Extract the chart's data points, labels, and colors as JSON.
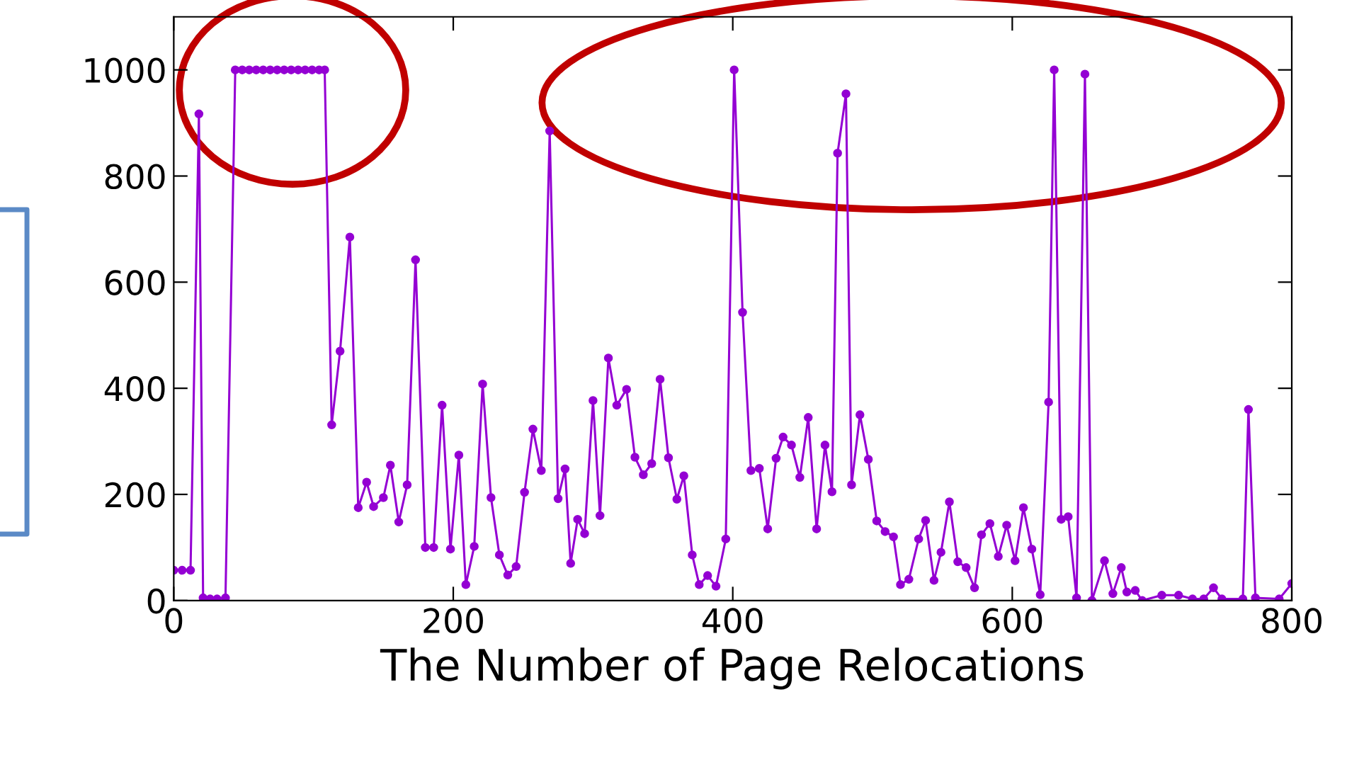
{
  "chart_data": {
    "type": "line",
    "xlabel": "The Number of Page Relocations",
    "series": [
      {
        "color": "#9400d3",
        "x": [
          0,
          6,
          12,
          18,
          21,
          26,
          31,
          37,
          44,
          49,
          54,
          59,
          64,
          69,
          74,
          79,
          84,
          89,
          94,
          99,
          104,
          108,
          113,
          119,
          126,
          132,
          138,
          143,
          150,
          155,
          161,
          167,
          173,
          180,
          186,
          192,
          198,
          204,
          209,
          215,
          221,
          227,
          233,
          239,
          245,
          251,
          257,
          263,
          269,
          275,
          280,
          284,
          289,
          294,
          300,
          305,
          311,
          317,
          324,
          330,
          336,
          342,
          348,
          354,
          360,
          365,
          371,
          376,
          382,
          388,
          395,
          401,
          407,
          413,
          419,
          425,
          431,
          436,
          442,
          448,
          454,
          460,
          466,
          471,
          475,
          481,
          485,
          491,
          497,
          503,
          509,
          515,
          520,
          526,
          533,
          538,
          544,
          549,
          555,
          561,
          567,
          573,
          578,
          584,
          590,
          596,
          602,
          608,
          614,
          620,
          626,
          630,
          635,
          640,
          646,
          652,
          657,
          666,
          672,
          678,
          682,
          688,
          693,
          707,
          719,
          729,
          737,
          744,
          750,
          765,
          769,
          774,
          791,
          800
        ],
        "values": [
          57,
          57,
          57,
          917,
          5,
          3,
          3,
          5,
          1000,
          1000,
          1000,
          1000,
          1000,
          1000,
          1000,
          1000,
          1000,
          1000,
          1000,
          1000,
          1000,
          1000,
          331,
          470,
          685,
          175,
          223,
          177,
          194,
          255,
          148,
          218,
          642,
          100,
          100,
          368,
          97,
          274,
          30,
          102,
          408,
          194,
          86,
          48,
          64,
          204,
          323,
          245,
          885,
          192,
          248,
          70,
          153,
          126,
          377,
          160,
          457,
          368,
          398,
          270,
          237,
          258,
          417,
          269,
          191,
          235,
          86,
          30,
          47,
          27,
          116,
          1000,
          543,
          245,
          249,
          135,
          268,
          308,
          293,
          232,
          345,
          135,
          293,
          205,
          843,
          955,
          218,
          350,
          266,
          150,
          130,
          120,
          30,
          40,
          116,
          151,
          38,
          91,
          186,
          73,
          62,
          24,
          124,
          145,
          83,
          142,
          75,
          175,
          97,
          11,
          374,
          1000,
          153,
          158,
          5,
          992,
          0,
          75,
          13,
          62,
          16,
          19,
          0,
          10,
          10,
          3,
          3,
          24,
          3,
          3,
          360,
          5,
          3,
          32
        ]
      }
    ],
    "xlim": [
      0,
      800
    ],
    "ylim": [
      0,
      1100
    ],
    "xticks": [
      0,
      200,
      400,
      600,
      800
    ],
    "yticks": [
      0,
      200,
      400,
      600,
      800,
      1000
    ],
    "marker": "circle",
    "line_style": "solid",
    "grid": false,
    "legend": false
  }
}
